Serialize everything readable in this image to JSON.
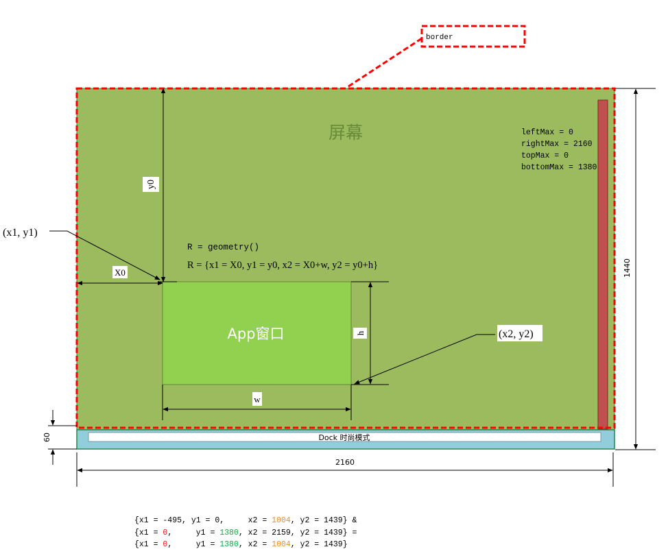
{
  "labels": {
    "border_callout": "border",
    "screen_title": "屏幕",
    "limits": [
      "leftMax = 0",
      "rightMax = 2160",
      "topMax = 0",
      "bottomMax = 1380"
    ],
    "y0": "y0",
    "x0": "X0",
    "p1": "(x1, y1)",
    "geometry_call": "R = geometry()",
    "geometry_formula": "R = {x1 = X0,  y1 = y0,  x2 = X0+w,  y2 = y0+h}",
    "app_window": "App窗口",
    "h": "h",
    "w": "w",
    "p2": "(x2, y2)",
    "dock": "Dock 时尚模式",
    "dock_height": "60",
    "screen_width": "2160",
    "screen_height": "1440"
  },
  "colors": {
    "screen_fill": "#9bbb5e",
    "app_fill": "#92d050",
    "dock_fill": "#92cddc",
    "scrollbar_fill": "#c0504d",
    "border_dash": "#ff0000",
    "title_text": "#6a8a3a",
    "red_value": "#e8141a",
    "green_value": "#1aa64a",
    "orange_value": "#f08a24"
  },
  "formula_lines": [
    [
      {
        "text": "{x1 = -495, y1 = 0,     x2 = ",
        "color": ""
      },
      {
        "text": "1004",
        "color": "orange"
      },
      {
        "text": ", y2 = 1439} &",
        "color": ""
      }
    ],
    [
      {
        "text": "{x1 = ",
        "color": ""
      },
      {
        "text": "0",
        "color": "red"
      },
      {
        "text": ",     y1 = ",
        "color": ""
      },
      {
        "text": "1380",
        "color": "green"
      },
      {
        "text": ", x2 = 2159, y2 = 1439} =",
        "color": ""
      }
    ],
    [
      {
        "text": "{x1 = ",
        "color": ""
      },
      {
        "text": "0",
        "color": "red"
      },
      {
        "text": ",     y1 = ",
        "color": ""
      },
      {
        "text": "1380",
        "color": "green"
      },
      {
        "text": ", x2 = ",
        "color": ""
      },
      {
        "text": "1004",
        "color": "orange"
      },
      {
        "text": ", y2 = 1439}",
        "color": ""
      }
    ]
  ]
}
